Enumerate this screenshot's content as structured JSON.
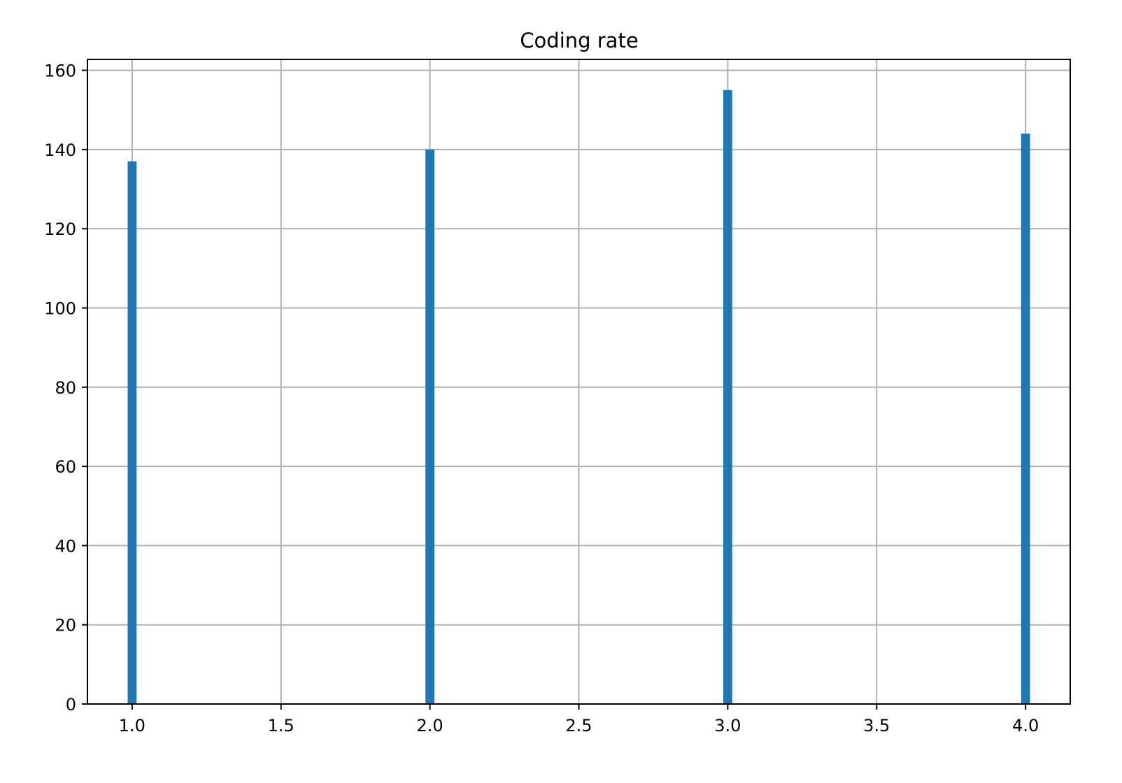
{
  "chart_data": {
    "type": "bar",
    "title": "Coding rate",
    "xlabel": "",
    "ylabel": "",
    "xlim": [
      0.85,
      4.15
    ],
    "ylim": [
      0,
      162.75
    ],
    "xticks": [
      1.0,
      1.5,
      2.0,
      2.5,
      3.0,
      3.5,
      4.0
    ],
    "xtick_labels": [
      "1.0",
      "1.5",
      "2.0",
      "2.5",
      "3.0",
      "3.5",
      "4.0"
    ],
    "yticks": [
      0,
      20,
      40,
      60,
      80,
      100,
      120,
      140,
      160
    ],
    "ytick_labels": [
      "0",
      "20",
      "40",
      "60",
      "80",
      "100",
      "120",
      "140",
      "160"
    ],
    "grid": true,
    "bar_color": "#1f77b4",
    "bin_width": 0.03,
    "bars": [
      {
        "x": 1.0,
        "value": 137
      },
      {
        "x": 2.0,
        "value": 140
      },
      {
        "x": 3.0,
        "value": 155
      },
      {
        "x": 4.0,
        "value": 144
      }
    ]
  }
}
